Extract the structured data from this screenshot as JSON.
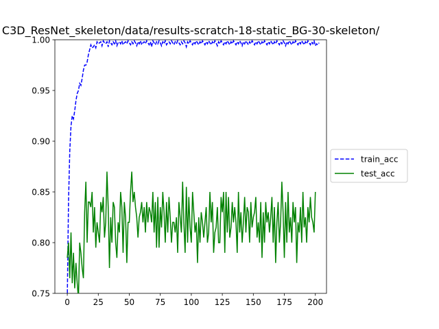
{
  "chart_data": {
    "type": "line",
    "title": "C3D_ResNet_skeleton/data/results-scratch-18-static_BG-30-skeleton/",
    "xlabel": "",
    "ylabel": "",
    "xlim": [
      -10,
      209
    ],
    "ylim": [
      0.75,
      1.0
    ],
    "grid": false,
    "legend_position": "right",
    "x_ticks": [
      0,
      25,
      50,
      75,
      100,
      125,
      150,
      175,
      200
    ],
    "y_ticks": [
      0.75,
      0.8,
      0.85,
      0.9,
      0.95,
      1.0
    ],
    "x_tick_labels": [
      "0",
      "25",
      "50",
      "75",
      "100",
      "125",
      "150",
      "175",
      "200"
    ],
    "y_tick_labels": [
      "0.75",
      "0.80",
      "0.85",
      "0.90",
      "0.95",
      "1.00"
    ],
    "series": [
      {
        "name": "train_acc",
        "color": "#0000ff",
        "style": "dashed",
        "values": [
          0.745,
          0.84,
          0.89,
          0.915,
          0.925,
          0.922,
          0.93,
          0.94,
          0.947,
          0.95,
          0.957,
          0.955,
          0.962,
          0.97,
          0.975,
          0.975,
          0.978,
          0.985,
          0.99,
          0.995,
          0.992,
          0.993,
          0.995,
          0.992,
          0.998,
          0.996,
          0.997,
          0.998,
          0.994,
          0.999,
          0.997,
          0.996,
          0.998,
          0.993,
          0.999,
          0.997,
          0.995,
          0.998,
          0.996,
          0.999,
          0.994,
          0.997,
          0.998,
          0.996,
          0.999,
          0.995,
          0.997,
          0.998,
          0.996,
          0.999,
          0.997,
          0.995,
          0.998,
          0.996,
          0.999,
          0.997,
          0.994,
          0.998,
          0.996,
          0.999,
          0.995,
          0.997,
          0.998,
          0.996,
          0.999,
          0.997,
          0.995,
          0.998,
          0.993,
          0.999,
          0.997,
          0.995,
          0.998,
          0.996,
          0.999,
          0.997,
          0.994,
          0.998,
          0.996,
          0.999,
          0.995,
          0.997,
          0.998,
          0.996,
          0.999,
          0.997,
          0.995,
          0.998,
          0.996,
          0.999,
          0.997,
          0.995,
          0.998,
          0.996,
          0.999,
          0.997,
          0.993,
          0.998,
          0.996,
          0.999,
          0.997,
          0.995,
          0.998,
          0.996,
          0.999,
          0.997,
          0.995,
          0.998,
          0.996,
          0.999,
          0.997,
          0.995,
          0.998,
          0.996,
          0.999,
          0.997,
          0.995,
          0.998,
          0.996,
          0.999,
          0.997,
          0.994,
          0.998,
          0.996,
          0.999,
          0.997,
          0.995,
          0.998,
          0.996,
          0.999,
          0.997,
          0.995,
          0.998,
          0.996,
          0.999,
          0.997,
          0.995,
          0.998,
          0.996,
          0.999,
          0.997,
          0.994,
          0.998,
          0.996,
          0.999,
          0.997,
          0.995,
          0.998,
          0.996,
          0.999,
          0.997,
          0.995,
          0.998,
          0.996,
          0.999,
          0.997,
          0.995,
          0.998,
          0.996,
          0.999,
          0.997,
          0.995,
          0.998,
          0.996,
          0.999,
          0.997,
          0.995,
          0.998,
          0.996,
          0.999,
          0.997,
          0.995,
          0.998,
          0.996,
          0.999,
          0.997,
          0.994,
          0.998,
          0.996,
          0.999,
          0.997,
          0.995,
          0.998,
          0.996,
          0.999,
          0.997,
          0.995,
          0.998,
          0.996,
          0.999,
          0.997,
          0.995,
          0.998,
          0.996,
          0.999,
          0.997,
          0.995,
          0.998,
          0.996,
          0.999,
          0.994,
          0.996,
          0.995,
          0.997
        ]
      },
      {
        "name": "test_acc",
        "color": "#008000",
        "style": "solid",
        "values": [
          0.785,
          0.8,
          0.765,
          0.81,
          0.76,
          0.79,
          0.755,
          0.78,
          0.76,
          0.745,
          0.8,
          0.79,
          0.775,
          0.765,
          0.83,
          0.86,
          0.8,
          0.84,
          0.84,
          0.835,
          0.85,
          0.81,
          0.835,
          0.795,
          0.82,
          0.81,
          0.8,
          0.84,
          0.83,
          0.845,
          0.805,
          0.82,
          0.87,
          0.835,
          0.775,
          0.825,
          0.8,
          0.84,
          0.835,
          0.8,
          0.785,
          0.82,
          0.81,
          0.85,
          0.835,
          0.79,
          0.84,
          0.825,
          0.78,
          0.82,
          0.82,
          0.85,
          0.87,
          0.84,
          0.85,
          0.835,
          0.825,
          0.805,
          0.825,
          0.83,
          0.84,
          0.82,
          0.835,
          0.81,
          0.84,
          0.82,
          0.835,
          0.83,
          0.82,
          0.85,
          0.81,
          0.84,
          0.795,
          0.845,
          0.795,
          0.835,
          0.815,
          0.85,
          0.83,
          0.8,
          0.84,
          0.81,
          0.845,
          0.825,
          0.8,
          0.82,
          0.82,
          0.81,
          0.825,
          0.79,
          0.84,
          0.825,
          0.81,
          0.86,
          0.82,
          0.79,
          0.855,
          0.8,
          0.845,
          0.815,
          0.8,
          0.85,
          0.83,
          0.81,
          0.82,
          0.78,
          0.825,
          0.8,
          0.83,
          0.82,
          0.805,
          0.82,
          0.835,
          0.8,
          0.81,
          0.85,
          0.82,
          0.84,
          0.79,
          0.81,
          0.815,
          0.835,
          0.8,
          0.8,
          0.845,
          0.83,
          0.85,
          0.79,
          0.85,
          0.81,
          0.845,
          0.805,
          0.815,
          0.84,
          0.82,
          0.835,
          0.82,
          0.79,
          0.85,
          0.81,
          0.83,
          0.8,
          0.82,
          0.845,
          0.81,
          0.835,
          0.83,
          0.8,
          0.84,
          0.815,
          0.825,
          0.83,
          0.845,
          0.805,
          0.82,
          0.8,
          0.84,
          0.785,
          0.83,
          0.8,
          0.84,
          0.82,
          0.83,
          0.81,
          0.825,
          0.845,
          0.8,
          0.835,
          0.78,
          0.82,
          0.84,
          0.8,
          0.82,
          0.86,
          0.83,
          0.785,
          0.84,
          0.8,
          0.85,
          0.81,
          0.825,
          0.8,
          0.84,
          0.82,
          0.835,
          0.78,
          0.82,
          0.81,
          0.835,
          0.8,
          0.85,
          0.815,
          0.825,
          0.8,
          0.835,
          0.82,
          0.845,
          0.825,
          0.82,
          0.81,
          0.85
        ]
      }
    ]
  }
}
